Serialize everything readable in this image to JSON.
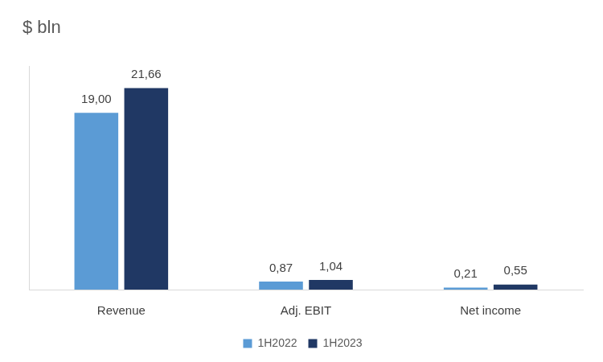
{
  "chart_data": {
    "type": "bar",
    "title": "$ bln",
    "categories": [
      "Revenue",
      "Adj. EBIT",
      "Net income"
    ],
    "series": [
      {
        "name": "1H2022",
        "color": "#5b9bd5",
        "values": [
          19.0,
          0.87,
          0.21
        ],
        "value_labels": [
          "19,00",
          "0,87",
          "0,21"
        ]
      },
      {
        "name": "1H2023",
        "color": "#203864",
        "values": [
          21.66,
          1.04,
          0.55
        ],
        "value_labels": [
          "21,66",
          "1,04",
          "0,55"
        ]
      }
    ],
    "ylim": [
      0,
      24
    ],
    "grid": false,
    "legend": "bottom",
    "data_labels": true,
    "tick_labels": "x"
  }
}
